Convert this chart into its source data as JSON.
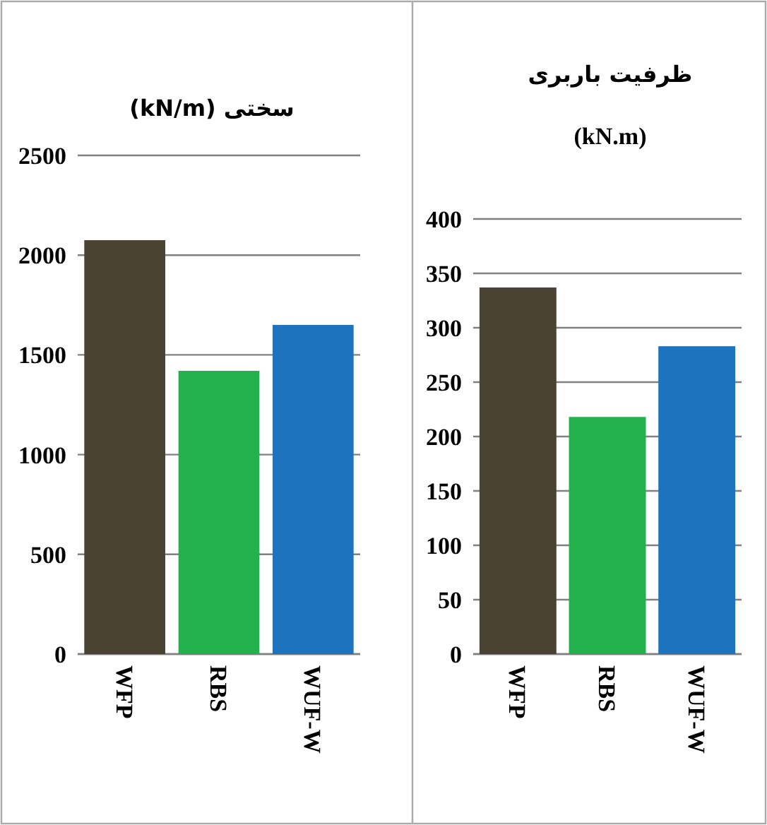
{
  "chart_data": [
    {
      "type": "bar",
      "title": "سختی (kN/m)",
      "categories": [
        "WFP",
        "RBS",
        "WUF-W"
      ],
      "values": [
        2075,
        1420,
        1650
      ],
      "colors": [
        "#4a4232",
        "#22b14c",
        "#1e73be"
      ],
      "ylim": [
        0,
        2500
      ],
      "yticks": [
        0,
        500,
        1000,
        1500,
        2000,
        2500
      ],
      "grid": "y"
    },
    {
      "type": "bar",
      "title": "ظرفیت باربری",
      "subtitle": "(kN.m)",
      "categories": [
        "WFP",
        "RBS",
        "WUF-W"
      ],
      "values": [
        337,
        218,
        283
      ],
      "colors": [
        "#4a4232",
        "#22b14c",
        "#1e73be"
      ],
      "ylim": [
        0,
        400
      ],
      "yticks": [
        0,
        50,
        100,
        150,
        200,
        250,
        300,
        350,
        400
      ],
      "grid": "y"
    }
  ]
}
